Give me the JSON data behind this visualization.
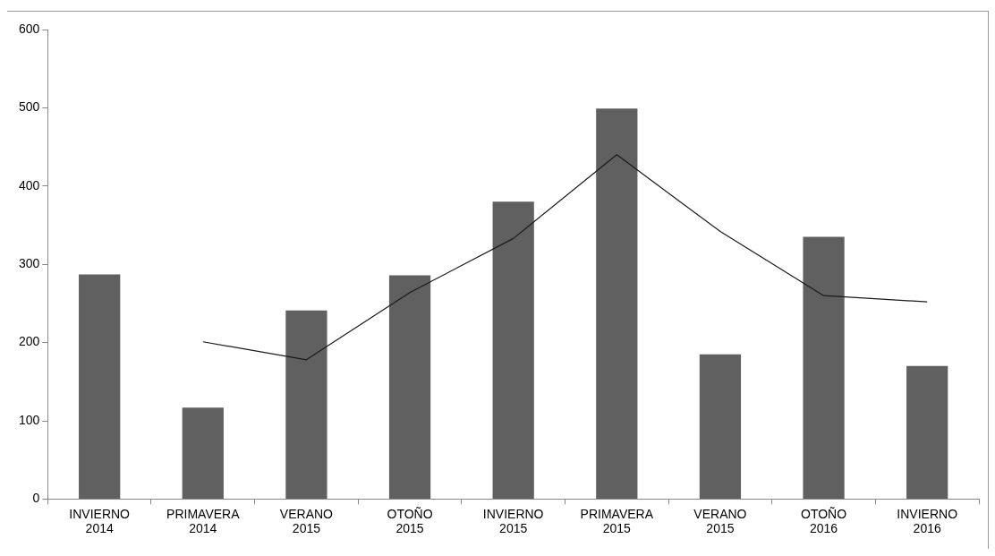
{
  "chart_data": {
    "type": "bar",
    "categories": [
      "INVIERNO 2014",
      "PRIMAVERA 2014",
      "VERANO 2015",
      "OTOÑO 2015",
      "INVIERNO 2015",
      "PRIMAVERA 2015",
      "VERANO 2015",
      "OTOÑO 2016",
      "INVIERNO 2016"
    ],
    "series": [
      {
        "color": "#606060",
        "values": [
          287,
          117,
          241,
          286,
          380,
          499,
          185,
          335,
          170
        ]
      },
      {
        "type": "line",
        "color": "#1a1a1a",
        "marker": "none",
        "values": [
          null,
          201,
          178,
          264,
          333,
          440,
          342,
          260,
          252
        ]
      }
    ],
    "ylim": [
      0,
      600
    ],
    "yticks": [
      0,
      100,
      200,
      300,
      400,
      500,
      600
    ],
    "grid": false,
    "legend": false
  }
}
